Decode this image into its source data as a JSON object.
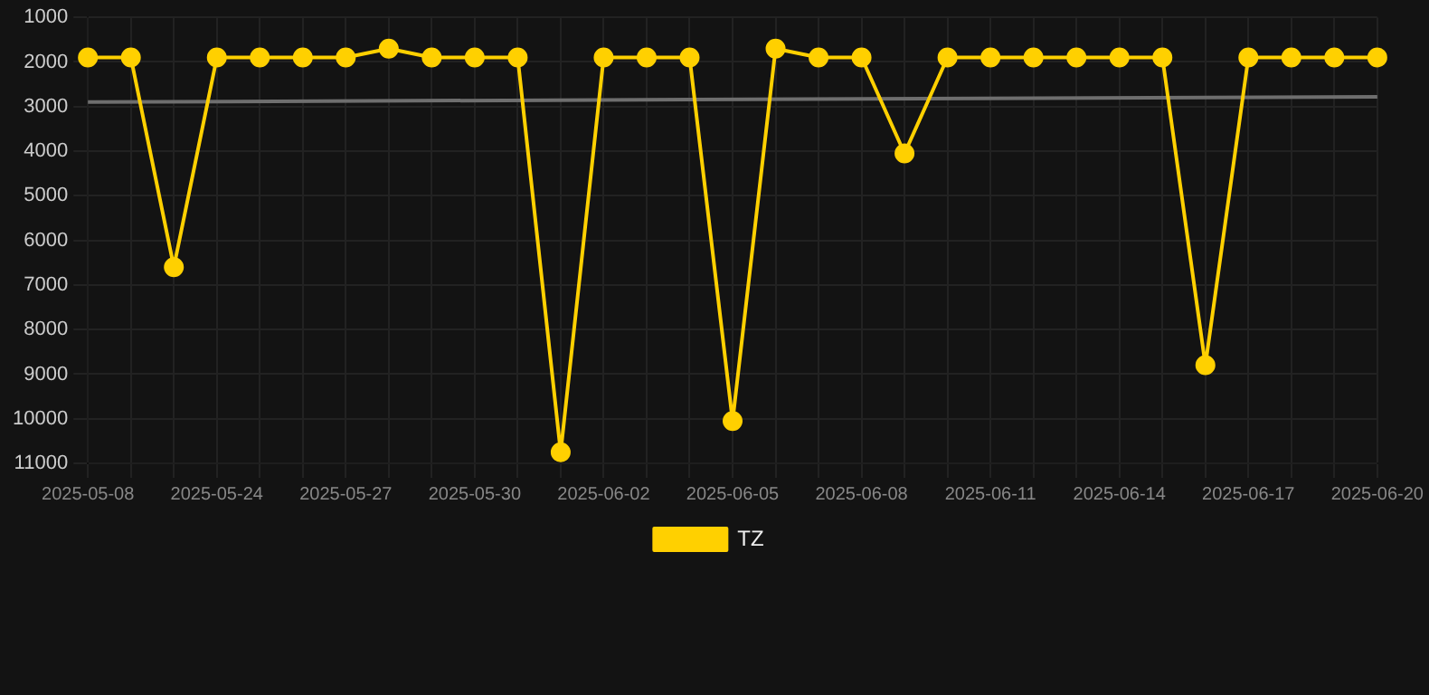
{
  "chart_data": {
    "type": "line",
    "categories": [
      "2025-05-08",
      null,
      null,
      "2025-05-24",
      null,
      null,
      "2025-05-27",
      null,
      null,
      "2025-05-30",
      null,
      null,
      "2025-06-02",
      null,
      null,
      "2025-06-05",
      null,
      null,
      "2025-06-08",
      null,
      null,
      "2025-06-11",
      null,
      null,
      "2025-06-14",
      null,
      null,
      "2025-06-17",
      null,
      null,
      "2025-06-20"
    ],
    "series": [
      {
        "name": "TZ",
        "color": "#ffd000",
        "marker": "circle",
        "values": [
          1900,
          1900,
          6600,
          1900,
          1900,
          1900,
          1900,
          1700,
          1900,
          1900,
          1900,
          10750,
          1900,
          1900,
          1900,
          10050,
          1700,
          1900,
          1900,
          4050,
          1900,
          1900,
          1900,
          1900,
          1900,
          1900,
          8800,
          1900,
          1900,
          1900,
          1900
        ]
      },
      {
        "type": "line",
        "color": "#6e6e6e",
        "marker": "none",
        "values": [
          2900,
          null,
          null,
          null,
          null,
          null,
          null,
          null,
          null,
          null,
          null,
          null,
          null,
          null,
          null,
          null,
          null,
          null,
          null,
          null,
          null,
          null,
          null,
          null,
          null,
          null,
          null,
          null,
          null,
          null,
          2780
        ]
      }
    ],
    "ylim": [
      11000,
      1000
    ],
    "yticks": [
      1000,
      2000,
      3000,
      4000,
      5000,
      6000,
      7000,
      8000,
      9000,
      10000,
      11000
    ],
    "grid": true,
    "legend": "bottom"
  }
}
